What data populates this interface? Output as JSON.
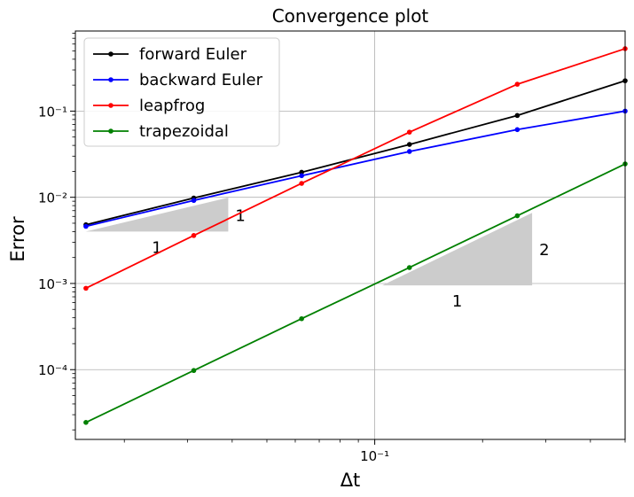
{
  "chart_data": {
    "type": "line",
    "title": "Convergence plot",
    "xlabel": "Δt",
    "ylabel": "Error",
    "xscale": "log",
    "yscale": "log",
    "xlim": [
      0.0146,
      0.5
    ],
    "ylim": [
      1.55e-05,
      0.85
    ],
    "grid": true,
    "legend_position": "top-left",
    "x": [
      0.015625,
      0.03125,
      0.0625,
      0.125,
      0.25,
      0.5
    ],
    "series": [
      {
        "name": "forward Euler",
        "color": "#000000",
        "values": [
          0.0048,
          0.0098,
          0.0195,
          0.041,
          0.089,
          0.225
        ]
      },
      {
        "name": "backward Euler",
        "color": "#0000ff",
        "values": [
          0.0046,
          0.0092,
          0.0178,
          0.034,
          0.061,
          0.1
        ]
      },
      {
        "name": "leapfrog",
        "color": "#ff0000",
        "values": [
          0.00088,
          0.0036,
          0.0145,
          0.057,
          0.205,
          0.53
        ]
      },
      {
        "name": "trapezoidal",
        "color": "#008000",
        "values": [
          2.44e-05,
          9.77e-05,
          0.00039,
          0.00153,
          0.0061,
          0.0244
        ]
      }
    ],
    "xticks": [
      {
        "value": 0.1,
        "label": "10⁻¹"
      }
    ],
    "yticks": [
      {
        "value": 0.0001,
        "label": "10⁻⁴"
      },
      {
        "value": 0.001,
        "label": "10⁻³"
      },
      {
        "value": 0.01,
        "label": "10⁻²"
      },
      {
        "value": 0.1,
        "label": "10⁻¹"
      }
    ],
    "slope_triangles": [
      {
        "x0": 0.0156,
        "x1": 0.039,
        "y0": 0.004,
        "y1": 0.0099,
        "run_label": "1",
        "rise_label": "1",
        "color": "#cccccc"
      },
      {
        "x0": 0.105,
        "x1": 0.275,
        "y0": 0.00095,
        "y1": 0.0066,
        "run_label": "1",
        "rise_label": "2",
        "color": "#cccccc"
      }
    ]
  }
}
